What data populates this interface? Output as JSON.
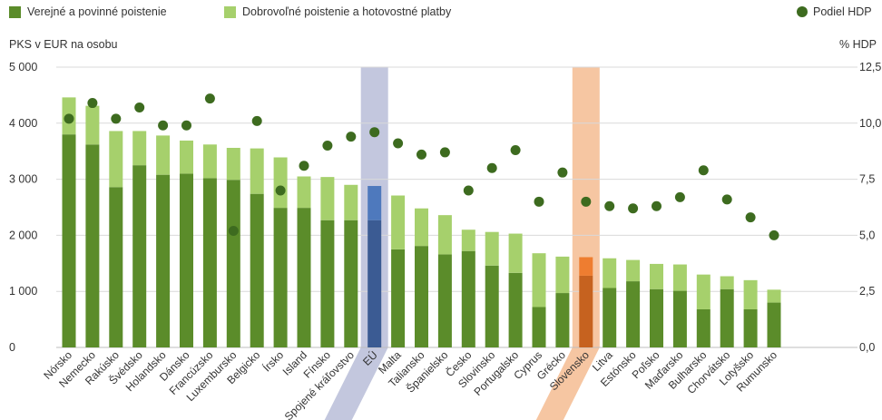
{
  "legend": {
    "public": "Verejné a povinné poistenie",
    "voluntary": "Dobrovoľné poistenie a hotovostné platby",
    "gdp_share": "Podiel HDP"
  },
  "colors": {
    "public": "#5b8c2a",
    "voluntary": "#a6d06c",
    "gdp_dot": "#3d6b1f",
    "eu_band": "#c3c7de",
    "eu_public": "#3b5b93",
    "eu_voluntary": "#4e79bd",
    "sk_band": "#f6c6a2",
    "sk_public": "#c6621f",
    "sk_voluntary": "#ee7d30",
    "grid": "#d9d9d9"
  },
  "chart_data": {
    "type": "bar",
    "stacked": true,
    "ylabel_left": "PKS v EUR na osobu",
    "ylabel_right": "% HDP",
    "ylim_left": [
      0,
      5000
    ],
    "ylim_right": [
      0,
      12.5
    ],
    "yticks_left": [
      "0",
      "1 000",
      "2 000",
      "3 000",
      "4 000",
      "5 000"
    ],
    "yticks_right": [
      "0,0",
      "2,5",
      "5,0",
      "7,5",
      "10,0",
      "12,5"
    ],
    "grid": true,
    "legend_position": "top",
    "highlight": [
      "EÚ",
      "Slovensko"
    ],
    "categories": [
      "Nórsko",
      "Nemecko",
      "Rakúsko",
      "Švédsko",
      "Holandsko",
      "Dánsko",
      "Francúzsko",
      "Luxembursko",
      "Belgicko",
      "Írsko",
      "Island",
      "Fínsko",
      "Spojené kráľovstvo",
      "EÚ",
      "Malta",
      "Taliansko",
      "Španielsko",
      "Česko",
      "Slovinsko",
      "Portugalsko",
      "Cyprus",
      "Grécko",
      "Slovensko",
      "Litva",
      "Estónsko",
      "Poľsko",
      "Maďarsko",
      "Bulharsko",
      "Chorvátsko",
      "Lotyšsko",
      "Rumunsko"
    ],
    "series": [
      {
        "name": "Verejné a povinné poistenie",
        "values": [
          3800,
          3620,
          2860,
          3250,
          3080,
          3100,
          3020,
          2990,
          2740,
          2490,
          2490,
          2270,
          2270,
          2270,
          1750,
          1810,
          1660,
          1720,
          1460,
          1330,
          720,
          970,
          1280,
          1060,
          1180,
          1040,
          1010,
          680,
          1040,
          680,
          800
        ]
      },
      {
        "name": "Dobrovoľné poistenie a hotovostné platby",
        "values": [
          660,
          690,
          1000,
          610,
          700,
          590,
          600,
          570,
          810,
          900,
          560,
          770,
          630,
          610,
          960,
          670,
          700,
          380,
          600,
          700,
          960,
          650,
          330,
          530,
          380,
          450,
          470,
          620,
          230,
          520,
          230
        ]
      },
      {
        "name": "Podiel HDP",
        "axis": "right",
        "values": [
          10.2,
          10.9,
          10.2,
          10.7,
          9.9,
          9.9,
          11.1,
          5.2,
          10.1,
          7.0,
          8.1,
          9.0,
          9.4,
          9.6,
          9.1,
          8.6,
          8.7,
          7.0,
          8.0,
          8.8,
          6.5,
          7.8,
          6.5,
          6.3,
          6.2,
          6.3,
          6.7,
          7.9,
          6.6,
          5.8,
          5.0
        ]
      }
    ]
  }
}
